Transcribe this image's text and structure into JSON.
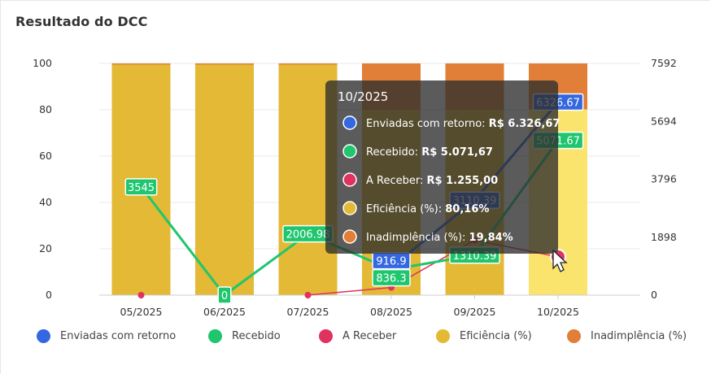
{
  "title": "Resultado do DCC",
  "colors": {
    "enviadas": "#3467E0",
    "recebido": "#1FC66E",
    "a_receber": "#E0325F",
    "eficiencia": "#E3B935",
    "inadimplencia": "#E17F38"
  },
  "chart_data": {
    "type": "bar",
    "categories": [
      "05/2025",
      "06/2025",
      "07/2025",
      "08/2025",
      "09/2025",
      "10/2025"
    ],
    "left_axis": {
      "ticks": [
        "0",
        "20",
        "40",
        "60",
        "80",
        "100"
      ],
      "ylim": [
        0,
        100
      ]
    },
    "right_axis": {
      "ticks": [
        "0",
        "1898",
        "3796",
        "5694",
        "7592"
      ],
      "ylim": [
        0,
        7592
      ]
    },
    "bars": {
      "eficiencia": [
        100,
        100,
        100,
        80,
        80,
        80.16
      ],
      "inadimplencia": [
        0,
        0,
        0,
        20,
        20,
        19.84
      ]
    },
    "lines": {
      "enviadas": [
        null,
        null,
        null,
        916.9,
        3110.39,
        6326.67
      ],
      "recebido": [
        3545,
        0,
        2006.98,
        836.3,
        1310.39,
        5071.67
      ],
      "a_receber": [
        0,
        null,
        0,
        250,
        1800,
        1255
      ]
    },
    "point_labels": [
      {
        "series": "recebido",
        "index": 0,
        "text": "3545"
      },
      {
        "series": "recebido",
        "index": 1,
        "text": "0"
      },
      {
        "series": "recebido",
        "index": 2,
        "text": "2006.98"
      },
      {
        "series": "recebido",
        "index": 3,
        "text": "836.3"
      },
      {
        "series": "enviadas",
        "index": 3,
        "text": "916.9"
      },
      {
        "series": "recebido",
        "index": 4,
        "text": "1310.39"
      },
      {
        "series": "enviadas",
        "index": 4,
        "text": "3110.39"
      },
      {
        "series": "enviadas",
        "index": 5,
        "text": "6326.67"
      },
      {
        "series": "recebido",
        "index": 5,
        "text": "5071.67"
      }
    ],
    "highlighted_index": 5,
    "legend": [
      {
        "key": "enviadas",
        "label": "Enviadas com retorno"
      },
      {
        "key": "recebido",
        "label": "Recebido"
      },
      {
        "key": "a_receber",
        "label": "A Receber"
      },
      {
        "key": "eficiencia",
        "label": "Eficiência (%)"
      },
      {
        "key": "inadimplencia",
        "label": "Inadimplência (%)"
      }
    ]
  },
  "tooltip": {
    "title": "10/2025",
    "rows": [
      {
        "key": "enviadas",
        "label": "Enviadas com retorno:",
        "value": "R$ 6.326,67"
      },
      {
        "key": "recebido",
        "label": "Recebido:",
        "value": "R$ 5.071,67"
      },
      {
        "key": "a_receber",
        "label": "A Receber:",
        "value": "R$ 1.255,00"
      },
      {
        "key": "eficiencia",
        "label": "Eficiência (%):",
        "value": "80,16%"
      },
      {
        "key": "inadimplencia",
        "label": "Inadimplência (%):",
        "value": "19,84%"
      }
    ]
  }
}
